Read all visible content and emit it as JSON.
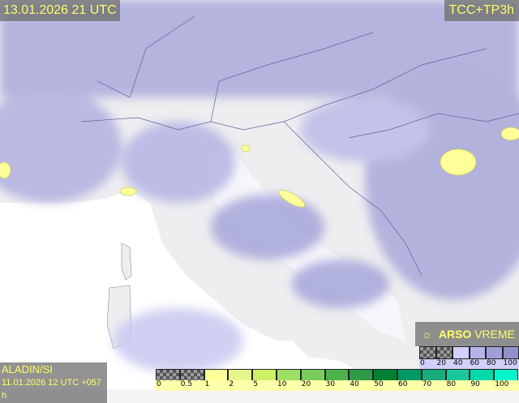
{
  "header": {
    "valid_time": "13.01.2026 21 UTC",
    "parameter": "TCC+TP3h"
  },
  "footer": {
    "model": "ALADIN/SI",
    "run": "11.01.2026 12 UTC +057 h"
  },
  "branding": {
    "logo_icon": "sun-cloud-icon",
    "brand_bold": "ARSO",
    "brand_light": "VREME"
  },
  "colors": {
    "land": "#eeeef0",
    "sea": "#ffffff",
    "cloud": "#b8b8e6",
    "label_text": "#ffff66",
    "label_bg": "#6e6e6e"
  },
  "precip_legend": {
    "labels": [
      "0",
      "0.5",
      "1",
      "2",
      "5",
      "10",
      "20",
      "30",
      "40",
      "50",
      "60",
      "70",
      "80",
      "90",
      "100"
    ],
    "colors": [
      "checker",
      "checker",
      "#ffff99",
      "#e6f58c",
      "#ccf066",
      "#9ce066",
      "#7acc5c",
      "#4cb34c",
      "#2e9946",
      "#008033",
      "#009966",
      "#1aab7c",
      "#1ac79c",
      "#00d9aa",
      "#00f5cc"
    ]
  },
  "cloud_legend": {
    "labels": [
      "0",
      "20",
      "40",
      "60",
      "80",
      "100"
    ],
    "colors": [
      "checker",
      "checker",
      "#d0d0f8",
      "#b4b4e8",
      "#a0a0d8",
      "#9090cc"
    ]
  }
}
